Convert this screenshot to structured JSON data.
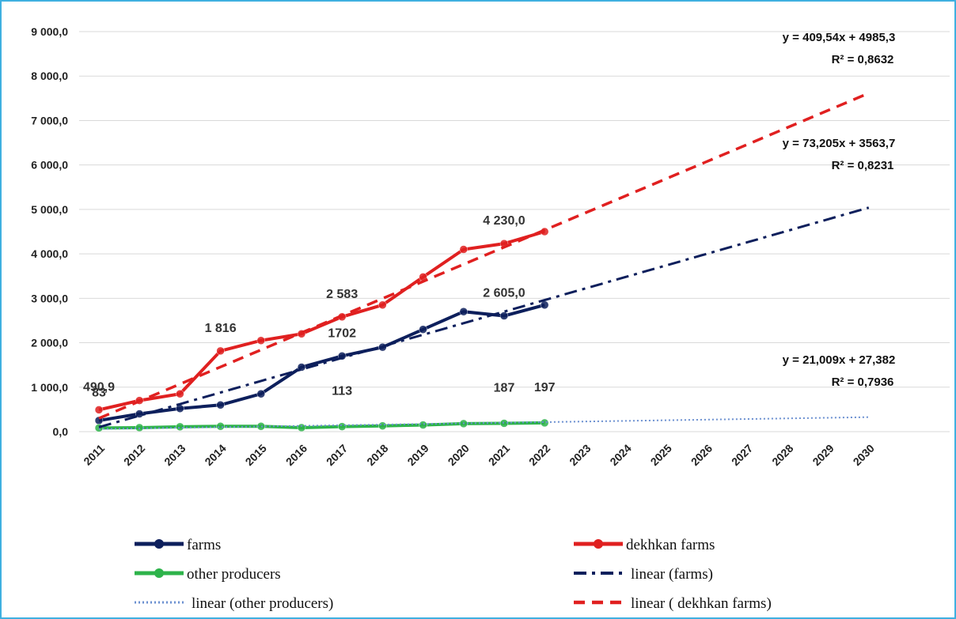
{
  "chart_data": {
    "type": "line",
    "categories": [
      "2011",
      "2012",
      "2013",
      "2014",
      "2015",
      "2016",
      "2017",
      "2018",
      "2019",
      "2020",
      "2021",
      "2022",
      "2023",
      "2024",
      "2025",
      "2026",
      "2027",
      "2028",
      "2029",
      "2030"
    ],
    "ylim": [
      0,
      9000
    ],
    "yticks": [
      {
        "value": 0,
        "label": "0,0"
      },
      {
        "value": 1000,
        "label": "1 000,0"
      },
      {
        "value": 2000,
        "label": "2 000,0"
      },
      {
        "value": 3000,
        "label": "3 000,0"
      },
      {
        "value": 4000,
        "label": "4 000,0"
      },
      {
        "value": 5000,
        "label": "5 000,0"
      },
      {
        "value": 6000,
        "label": "6 000,0"
      },
      {
        "value": 7000,
        "label": "7 000,0"
      },
      {
        "value": 8000,
        "label": "8 000,0"
      },
      {
        "value": 9000,
        "label": "9 000,0"
      }
    ],
    "grid": true,
    "series": [
      {
        "name": "farms",
        "color": "#0d1f5c",
        "style": "solid",
        "values": [
          250,
          400,
          520,
          600,
          850,
          1450,
          1702,
          1900,
          2300,
          2700,
          2605,
          2850,
          null,
          null,
          null,
          null,
          null,
          null,
          null,
          null
        ],
        "value_labels": [
          null,
          null,
          null,
          null,
          null,
          null,
          "1702",
          null,
          null,
          null,
          "2 605,0",
          null,
          null,
          null,
          null,
          null,
          null,
          null,
          null,
          null
        ]
      },
      {
        "name": "dekhkan farms",
        "color": "#e02020",
        "style": "solid",
        "values": [
          490.9,
          700,
          850,
          1816,
          2050,
          2200,
          2583,
          2850,
          3480,
          4100,
          4230,
          4500,
          null,
          null,
          null,
          null,
          null,
          null,
          null,
          null
        ],
        "value_labels": [
          "490,9",
          null,
          null,
          "1 816",
          null,
          null,
          "2 583",
          null,
          null,
          null,
          "4 230,0",
          null,
          null,
          null,
          null,
          null,
          null,
          null,
          null,
          null
        ]
      },
      {
        "name": "other producers",
        "color": "#2db34a",
        "style": "solid",
        "values": [
          83,
          90,
          110,
          120,
          120,
          90,
          113,
          130,
          150,
          180,
          187,
          197,
          null,
          null,
          null,
          null,
          null,
          null,
          null,
          null
        ],
        "value_labels": [
          "83",
          null,
          null,
          null,
          null,
          null,
          "113",
          null,
          null,
          null,
          "187",
          "197",
          null,
          null,
          null,
          null,
          null,
          null,
          null,
          null
        ]
      },
      {
        "name": "linear (farms)",
        "color": "#0d1f5c",
        "style": "dashdot",
        "values": [
          100,
          360,
          620,
          880,
          1140,
          1400,
          1660,
          1920,
          2180,
          2440,
          2700,
          2960,
          3220,
          3480,
          3740,
          4000,
          4260,
          4520,
          4780,
          5040
        ],
        "equation": "y = 73,205x + 3563,7",
        "r2": "R² = 0,8231"
      },
      {
        "name": "linear (other producers)",
        "color": "#6a8fd0",
        "style": "dotted",
        "values": [
          60,
          74,
          88,
          102,
          116,
          130,
          144,
          158,
          172,
          186,
          200,
          214,
          228,
          242,
          256,
          270,
          284,
          298,
          312,
          326
        ],
        "equation": "y = 21,009x + 27,382",
        "r2": "R² = 0,7936"
      },
      {
        "name": "linear ( dekhkan farms)",
        "color": "#e02020",
        "style": "dashed",
        "values": [
          300,
          685,
          1070,
          1455,
          1840,
          2225,
          2610,
          2995,
          3380,
          3765,
          4150,
          4535,
          4920,
          5305,
          5690,
          6075,
          6460,
          6845,
          7230,
          7615
        ],
        "equation": "y = 409,54x + 4985,3",
        "r2": "R² = 0,8632"
      }
    ]
  }
}
